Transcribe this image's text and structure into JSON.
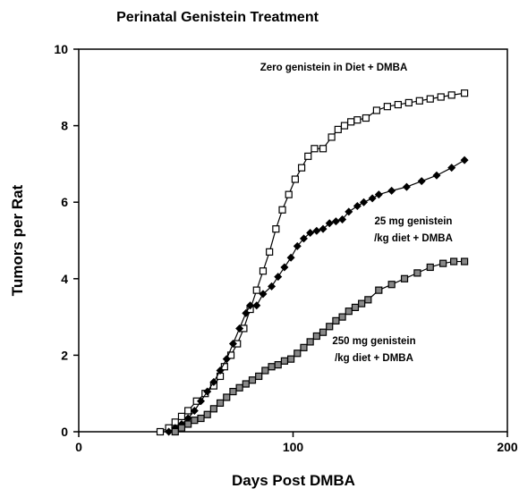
{
  "chart_data": {
    "type": "line",
    "title": "Perinatal Genistein Treatment",
    "xlabel": "Days Post DMBA",
    "ylabel": "Tumors per Rat",
    "xlim": [
      0,
      200
    ],
    "xticks": [
      0,
      100,
      200
    ],
    "ylim": [
      0,
      10
    ],
    "yticks": [
      0,
      2,
      4,
      6,
      8,
      10
    ],
    "series": [
      {
        "color": "#000000",
        "marker": "square-open",
        "x": [
          38,
          42,
          45,
          48,
          51,
          55,
          59,
          63,
          66,
          68,
          71,
          74,
          77,
          80,
          83,
          86,
          89,
          92,
          95,
          98,
          101,
          104,
          107,
          110,
          114,
          118,
          121,
          124,
          127,
          130,
          134,
          139,
          144,
          149,
          154,
          159,
          164,
          169,
          174,
          180
        ],
        "values": [
          0,
          0.1,
          0.25,
          0.4,
          0.55,
          0.8,
          1.0,
          1.2,
          1.45,
          1.7,
          2.0,
          2.3,
          2.7,
          3.2,
          3.7,
          4.2,
          4.7,
          5.3,
          5.8,
          6.2,
          6.6,
          6.9,
          7.2,
          7.4,
          7.4,
          7.7,
          7.9,
          8.0,
          8.1,
          8.15,
          8.2,
          8.4,
          8.5,
          8.55,
          8.6,
          8.65,
          8.7,
          8.75,
          8.8,
          8.85
        ]
      },
      {
        "color": "#000000",
        "marker": "diamond",
        "x": [
          42,
          45,
          48,
          51,
          54,
          57,
          60,
          63,
          66,
          69,
          72,
          75,
          78,
          80,
          83,
          86,
          90,
          93,
          96,
          99,
          102,
          105,
          108,
          111,
          114,
          117,
          120,
          123,
          126,
          130,
          133,
          137,
          140,
          146,
          153,
          160,
          167,
          174,
          180
        ],
        "values": [
          0,
          0.1,
          0.2,
          0.35,
          0.55,
          0.8,
          1.05,
          1.3,
          1.6,
          1.9,
          2.3,
          2.7,
          3.1,
          3.3,
          3.3,
          3.6,
          3.8,
          4.05,
          4.3,
          4.55,
          4.85,
          5.05,
          5.2,
          5.25,
          5.3,
          5.45,
          5.5,
          5.55,
          5.75,
          5.9,
          6.0,
          6.1,
          6.2,
          6.3,
          6.4,
          6.55,
          6.7,
          6.9,
          7.1
        ]
      },
      {
        "color": "#000000",
        "marker": "square-dot",
        "x": [
          45,
          48,
          51,
          54,
          57,
          60,
          63,
          66,
          69,
          72,
          75,
          78,
          81,
          84,
          87,
          90,
          93,
          96,
          99,
          102,
          105,
          108,
          111,
          114,
          117,
          120,
          123,
          126,
          129,
          132,
          135,
          140,
          146,
          152,
          158,
          164,
          170,
          175,
          180
        ],
        "values": [
          0,
          0.1,
          0.2,
          0.3,
          0.35,
          0.45,
          0.6,
          0.75,
          0.9,
          1.05,
          1.15,
          1.25,
          1.35,
          1.45,
          1.6,
          1.7,
          1.75,
          1.85,
          1.9,
          2.05,
          2.2,
          2.35,
          2.5,
          2.6,
          2.75,
          2.9,
          3.0,
          3.15,
          3.25,
          3.35,
          3.45,
          3.7,
          3.85,
          4.0,
          4.15,
          4.3,
          4.4,
          4.45,
          4.45
        ]
      }
    ],
    "annotations": [
      [
        "Zero genistein in Diet + DMBA"
      ],
      [
        "25 mg genistein",
        "/kg diet + DMBA"
      ],
      [
        "250 mg genistein",
        "/kg diet + DMBA"
      ]
    ]
  }
}
